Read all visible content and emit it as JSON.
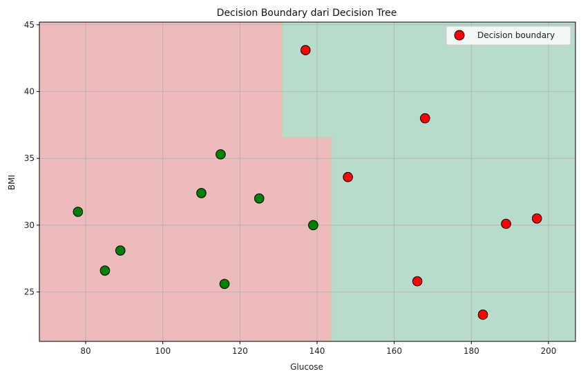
{
  "chart_data": {
    "type": "scatter",
    "title": "Decision Boundary dari Decision Tree",
    "xlabel": "Glucose",
    "ylabel": "BMI",
    "xlim": [
      68,
      207
    ],
    "ylim": [
      21.3,
      45.2
    ],
    "xticks": [
      80,
      100,
      120,
      140,
      160,
      180,
      200
    ],
    "yticks": [
      25,
      30,
      35,
      40,
      45
    ],
    "grid": true,
    "legend_position": "top-right",
    "legend": [
      {
        "label": "Decision boundary",
        "color": "#ff0000"
      }
    ],
    "regions": {
      "colors": {
        "red": "#edbbbc",
        "green": "#b9dbcb"
      },
      "boundary_color": "#bfd9a0",
      "split_x_low": 131,
      "split_x_high": 143.7,
      "split_y": 36.6,
      "rule": "green if x >= split_x_high or (x >= split_x_low and y >= split_y), else red"
    },
    "series": [
      {
        "color": "#008000",
        "points": [
          {
            "x": 78,
            "y": 31.0
          },
          {
            "x": 85,
            "y": 26.6
          },
          {
            "x": 89,
            "y": 28.1
          },
          {
            "x": 110,
            "y": 32.4
          },
          {
            "x": 115,
            "y": 35.3
          },
          {
            "x": 116,
            "y": 25.6
          },
          {
            "x": 125,
            "y": 32.0
          },
          {
            "x": 139,
            "y": 30.0
          }
        ]
      },
      {
        "name": "Decision boundary",
        "color": "#ff0000",
        "points": [
          {
            "x": 137,
            "y": 43.1
          },
          {
            "x": 148,
            "y": 33.6
          },
          {
            "x": 166,
            "y": 25.8
          },
          {
            "x": 168,
            "y": 38.0
          },
          {
            "x": 183,
            "y": 23.3
          },
          {
            "x": 189,
            "y": 30.1
          },
          {
            "x": 197,
            "y": 30.5
          }
        ]
      }
    ]
  }
}
